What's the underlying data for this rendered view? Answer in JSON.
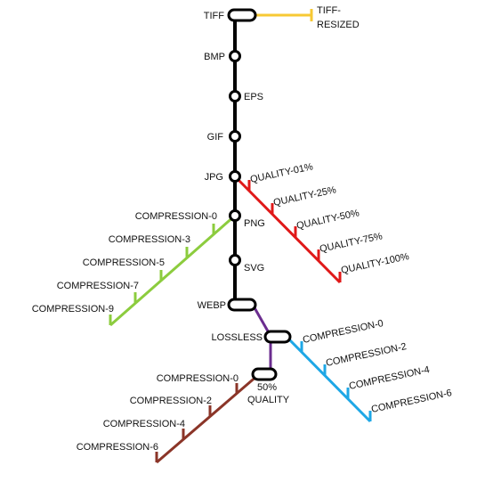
{
  "colors": {
    "main": "#000000",
    "tiff_branch": "#f7c934",
    "jpg_branch": "#e01919",
    "png_branch": "#8ccc3e",
    "webp_branch": "#6b2d8f",
    "lossless_branch": "#1ea7e6",
    "quality_branch": "#8b3528"
  },
  "main_line": {
    "stations": [
      "TIFF",
      "BMP",
      "EPS",
      "GIF",
      "JPG",
      "PNG",
      "SVG",
      "WEBP"
    ]
  },
  "tiff_branch": {
    "end_label_1": "TIFF-",
    "end_label_2": "RESIZED"
  },
  "jpg_branch": {
    "labels": [
      "QUALITY-01%",
      "QUALITY-25%",
      "QUALITY-50%",
      "QUALITY-75%",
      "QUALITY-100%"
    ]
  },
  "png_branch": {
    "labels": [
      "COMPRESSION-0",
      "COMPRESSION-3",
      "COMPRESSION-5",
      "COMPRESSION-7",
      "COMPRESSION-9"
    ]
  },
  "webp_branch": {
    "station_1": "LOSSLESS",
    "station_2_line1": "50%",
    "station_2_line2": "QUALITY"
  },
  "lossless_branch": {
    "labels": [
      "COMPRESSION-0",
      "COMPRESSION-2",
      "COMPRESSION-4",
      "COMPRESSION-6"
    ]
  },
  "quality_branch": {
    "labels": [
      "COMPRESSION-0",
      "COMPRESSION-2",
      "COMPRESSION-4",
      "COMPRESSION-6"
    ]
  }
}
